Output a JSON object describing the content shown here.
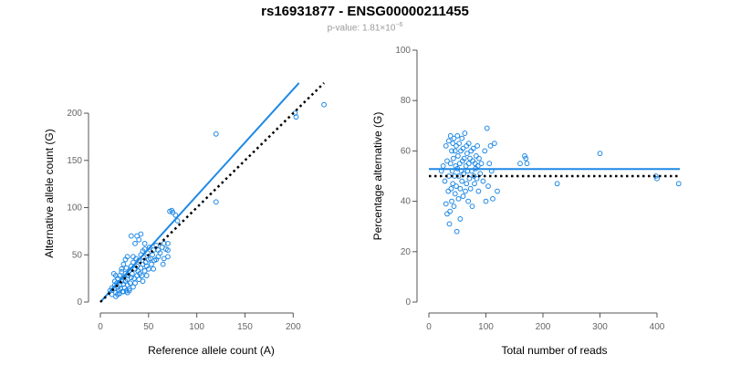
{
  "title": "rs16931877 - ENSG00000211455",
  "subtitle": {
    "prefix": "p-value: 1.81×10",
    "exponent": "−6"
  },
  "colors": {
    "points": "#1e88e5",
    "fit_line": "#1e88e5",
    "reference_line": "#000000",
    "axis": "#555555",
    "tick_label": "#666666"
  },
  "chart_data": [
    {
      "type": "scatter",
      "xlabel": "Reference allele count (A)",
      "ylabel": "Alternative allele count (G)",
      "xlim": [
        0,
        230
      ],
      "ylim": [
        0,
        230
      ],
      "xticks": [
        0,
        50,
        100,
        150,
        200
      ],
      "yticks": [
        0,
        50,
        100,
        150,
        200
      ],
      "grid": false,
      "lines": [
        {
          "kind": "fit",
          "style": "solid",
          "x": [
            0,
            206
          ],
          "y": [
            0,
            232
          ]
        },
        {
          "kind": "identity",
          "style": "dotted",
          "x": [
            0,
            232
          ],
          "y": [
            0,
            232
          ]
        }
      ],
      "points": [
        [
          10,
          12
        ],
        [
          12,
          15
        ],
        [
          14,
          14
        ],
        [
          15,
          18
        ],
        [
          15,
          22
        ],
        [
          16,
          10
        ],
        [
          17,
          20
        ],
        [
          18,
          16
        ],
        [
          18,
          25
        ],
        [
          19,
          12
        ],
        [
          20,
          18
        ],
        [
          20,
          28
        ],
        [
          21,
          14
        ],
        [
          22,
          22
        ],
        [
          22,
          32
        ],
        [
          23,
          11
        ],
        [
          24,
          19
        ],
        [
          24,
          26
        ],
        [
          25,
          15
        ],
        [
          26,
          30
        ],
        [
          26,
          22
        ],
        [
          27,
          12
        ],
        [
          27,
          36
        ],
        [
          28,
          24
        ],
        [
          28,
          18
        ],
        [
          29,
          28
        ],
        [
          30,
          14
        ],
        [
          30,
          33
        ],
        [
          31,
          20
        ],
        [
          32,
          38
        ],
        [
          32,
          26
        ],
        [
          33,
          30
        ],
        [
          34,
          16
        ],
        [
          34,
          42
        ],
        [
          35,
          25
        ],
        [
          36,
          35
        ],
        [
          36,
          20
        ],
        [
          37,
          46
        ],
        [
          38,
          28
        ],
        [
          38,
          38
        ],
        [
          39,
          33
        ],
        [
          40,
          24
        ],
        [
          40,
          44
        ],
        [
          41,
          30
        ],
        [
          42,
          50
        ],
        [
          42,
          36
        ],
        [
          43,
          28
        ],
        [
          44,
          40
        ],
        [
          44,
          22
        ],
        [
          45,
          47
        ],
        [
          46,
          33
        ],
        [
          46,
          56
        ],
        [
          47,
          42
        ],
        [
          48,
          38
        ],
        [
          48,
          28
        ],
        [
          49,
          52
        ],
        [
          50,
          45
        ],
        [
          50,
          35
        ],
        [
          51,
          58
        ],
        [
          52,
          46
        ],
        [
          53,
          40
        ],
        [
          54,
          50
        ],
        [
          55,
          55
        ],
        [
          56,
          44
        ],
        [
          58,
          60
        ],
        [
          60,
          48
        ],
        [
          62,
          52
        ],
        [
          64,
          58
        ],
        [
          65,
          40
        ],
        [
          66,
          46
        ],
        [
          68,
          56
        ],
        [
          70,
          62
        ],
        [
          70,
          48
        ],
        [
          72,
          96
        ],
        [
          74,
          97
        ],
        [
          75,
          95
        ],
        [
          78,
          92
        ],
        [
          80,
          86
        ],
        [
          32,
          70
        ],
        [
          38,
          70
        ],
        [
          42,
          72
        ],
        [
          22,
          35
        ],
        [
          24,
          40
        ],
        [
          26,
          45
        ],
        [
          28,
          48
        ],
        [
          18,
          8
        ],
        [
          20,
          9
        ],
        [
          24,
          11
        ],
        [
          28,
          10
        ],
        [
          30,
          12
        ],
        [
          120,
          178
        ],
        [
          120,
          106
        ],
        [
          202,
          200
        ],
        [
          203,
          196
        ],
        [
          232,
          209
        ],
        [
          14,
          30
        ],
        [
          16,
          28
        ],
        [
          12,
          8
        ],
        [
          16,
          6
        ],
        [
          36,
          62
        ],
        [
          40,
          66
        ],
        [
          58,
          45
        ],
        [
          60,
          55
        ],
        [
          34,
          48
        ],
        [
          44,
          54
        ],
        [
          46,
          62
        ],
        [
          55,
          35
        ],
        [
          66,
          62
        ],
        [
          70,
          55
        ]
      ]
    },
    {
      "type": "scatter",
      "xlabel": "Total number of reads",
      "ylabel": "Percentage alternative (G)",
      "xlim": [
        0,
        440
      ],
      "ylim": [
        0,
        100
      ],
      "xticks": [
        0,
        100,
        200,
        300,
        400
      ],
      "yticks": [
        0,
        20,
        40,
        60,
        80,
        100
      ],
      "grid": false,
      "lines": [
        {
          "kind": "mean",
          "style": "solid",
          "x": [
            0,
            440
          ],
          "y": [
            52.8,
            52.8
          ]
        },
        {
          "kind": "null",
          "style": "dotted",
          "x": [
            0,
            440
          ],
          "y": [
            50,
            50
          ]
        }
      ],
      "points": [
        [
          22,
          52
        ],
        [
          25,
          54
        ],
        [
          28,
          48
        ],
        [
          30,
          62
        ],
        [
          30,
          39
        ],
        [
          32,
          35
        ],
        [
          32,
          56
        ],
        [
          34,
          44
        ],
        [
          35,
          64
        ],
        [
          35,
          50
        ],
        [
          36,
          31
        ],
        [
          37,
          36
        ],
        [
          38,
          66
        ],
        [
          38,
          55
        ],
        [
          39,
          45
        ],
        [
          40,
          60
        ],
        [
          40,
          40
        ],
        [
          41,
          52
        ],
        [
          42,
          63
        ],
        [
          42,
          47
        ],
        [
          43,
          57
        ],
        [
          44,
          65
        ],
        [
          44,
          38
        ],
        [
          45,
          50
        ],
        [
          46,
          60
        ],
        [
          46,
          43
        ],
        [
          47,
          54
        ],
        [
          48,
          62
        ],
        [
          48,
          46
        ],
        [
          49,
          28
        ],
        [
          50,
          53
        ],
        [
          50,
          66
        ],
        [
          51,
          58
        ],
        [
          52,
          41
        ],
        [
          52,
          50
        ],
        [
          53,
          63
        ],
        [
          54,
          55
        ],
        [
          55,
          45
        ],
        [
          55,
          33
        ],
        [
          56,
          60
        ],
        [
          57,
          52
        ],
        [
          58,
          65
        ],
        [
          58,
          48
        ],
        [
          59,
          56
        ],
        [
          60,
          42
        ],
        [
          60,
          61
        ],
        [
          61,
          51
        ],
        [
          62,
          57
        ],
        [
          63,
          67
        ],
        [
          64,
          44
        ],
        [
          65,
          54
        ],
        [
          66,
          62
        ],
        [
          66,
          47
        ],
        [
          67,
          59
        ],
        [
          68,
          52
        ],
        [
          69,
          40
        ],
        [
          70,
          55
        ],
        [
          70,
          63
        ],
        [
          71,
          49
        ],
        [
          72,
          57
        ],
        [
          73,
          45
        ],
        [
          74,
          60
        ],
        [
          75,
          52
        ],
        [
          76,
          38
        ],
        [
          77,
          56
        ],
        [
          78,
          61
        ],
        [
          79,
          50
        ],
        [
          80,
          47
        ],
        [
          81,
          55
        ],
        [
          82,
          53
        ],
        [
          83,
          58
        ],
        [
          84,
          49
        ],
        [
          85,
          62
        ],
        [
          86,
          54
        ],
        [
          87,
          44
        ],
        [
          88,
          57
        ],
        [
          90,
          51
        ],
        [
          92,
          55
        ],
        [
          95,
          48
        ],
        [
          98,
          60
        ],
        [
          100,
          40
        ],
        [
          102,
          69
        ],
        [
          104,
          46
        ],
        [
          106,
          55
        ],
        [
          108,
          62
        ],
        [
          110,
          52
        ],
        [
          112,
          41
        ],
        [
          115,
          63
        ],
        [
          120,
          44
        ],
        [
          160,
          55
        ],
        [
          168,
          58
        ],
        [
          170,
          57
        ],
        [
          172,
          55
        ],
        [
          225,
          47
        ],
        [
          300,
          59
        ],
        [
          398,
          50
        ],
        [
          400,
          49
        ],
        [
          438,
          47
        ]
      ]
    }
  ]
}
